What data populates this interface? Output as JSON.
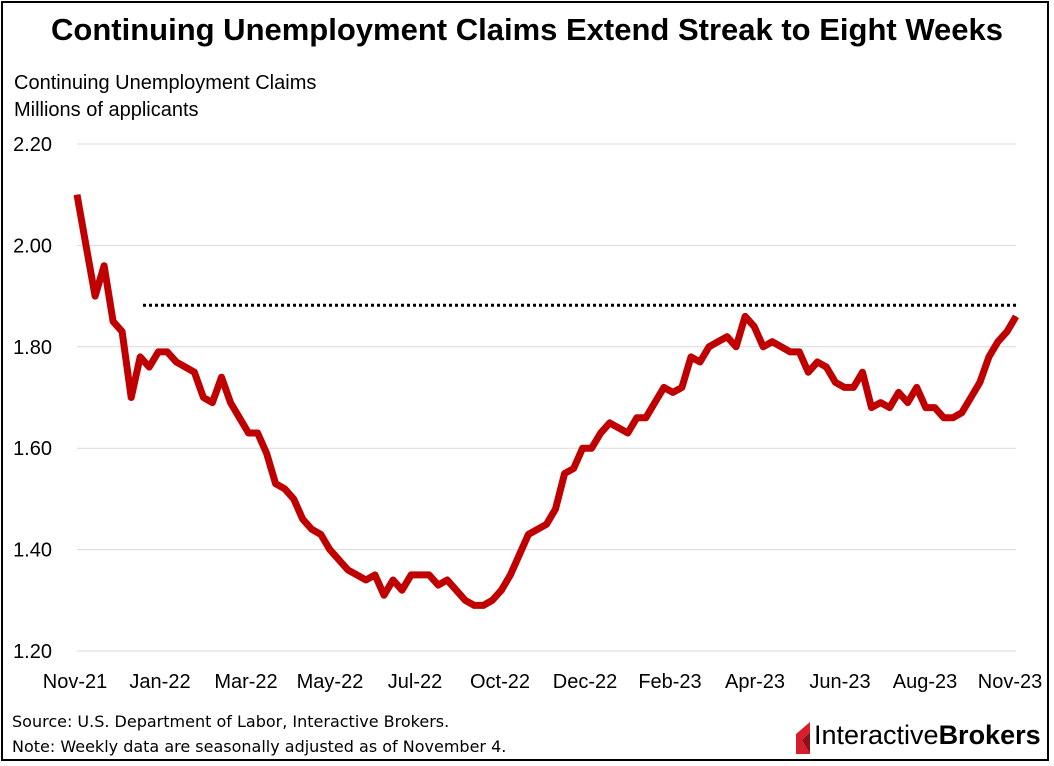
{
  "title": "Continuing Unemployment Claims Extend Streak to Eight Weeks",
  "ylabel_line1": "Continuing Unemployment Claims",
  "ylabel_line2": "Millions of applicants",
  "footer": {
    "source": "Source: U.S. Department of Labor, Interactive Brokers.",
    "note": "Note: Weekly data are seasonally adjusted as of November 4."
  },
  "logo": {
    "text_regular": "Interactive",
    "text_bold": "Brokers",
    "icon": "interactive-brokers-logo-icon"
  },
  "colors": {
    "series": "#C00000",
    "reference_line": "#000000",
    "grid": "#D9D9D9"
  },
  "chart_data": {
    "type": "line",
    "title": "Continuing Unemployment Claims Extend Streak to Eight Weeks",
    "ylabel": "Continuing Unemployment Claims Millions of applicants",
    "xlabel": "",
    "ylim": [
      1.2,
      2.2
    ],
    "yticks": [
      "2.20",
      "2.00",
      "1.80",
      "1.60",
      "1.40",
      "1.20"
    ],
    "x_ticks": [
      "Nov-21",
      "Jan-22",
      "Mar-22",
      "May-22",
      "Jul-22",
      "Oct-22",
      "Dec-22",
      "Feb-23",
      "Apr-23",
      "Jun-23",
      "Aug-23",
      "Nov-23"
    ],
    "grid": "horizontal",
    "reference_line": {
      "value": 1.882,
      "style": "dotted",
      "start": "Dec-21"
    },
    "series": [
      {
        "values": [
          2.1,
          2.0,
          1.9,
          1.96,
          1.85,
          1.83,
          1.7,
          1.78,
          1.76,
          1.79,
          1.79,
          1.77,
          1.76,
          1.75,
          1.7,
          1.69,
          1.74,
          1.69,
          1.66,
          1.63,
          1.63,
          1.59,
          1.53,
          1.52,
          1.5,
          1.46,
          1.44,
          1.43,
          1.4,
          1.38,
          1.36,
          1.35,
          1.34,
          1.35,
          1.31,
          1.34,
          1.32,
          1.35,
          1.35,
          1.35,
          1.33,
          1.34,
          1.32,
          1.3,
          1.29,
          1.29,
          1.3,
          1.32,
          1.35,
          1.39,
          1.43,
          1.44,
          1.45,
          1.48,
          1.55,
          1.56,
          1.6,
          1.6,
          1.63,
          1.65,
          1.64,
          1.63,
          1.66,
          1.66,
          1.69,
          1.72,
          1.71,
          1.72,
          1.78,
          1.77,
          1.8,
          1.81,
          1.82,
          1.8,
          1.86,
          1.84,
          1.8,
          1.81,
          1.8,
          1.79,
          1.79,
          1.75,
          1.77,
          1.76,
          1.73,
          1.72,
          1.72,
          1.75,
          1.68,
          1.69,
          1.68,
          1.71,
          1.69,
          1.72,
          1.68,
          1.68,
          1.66,
          1.66,
          1.67,
          1.7,
          1.73,
          1.78,
          1.81,
          1.83,
          1.86
        ]
      }
    ]
  }
}
